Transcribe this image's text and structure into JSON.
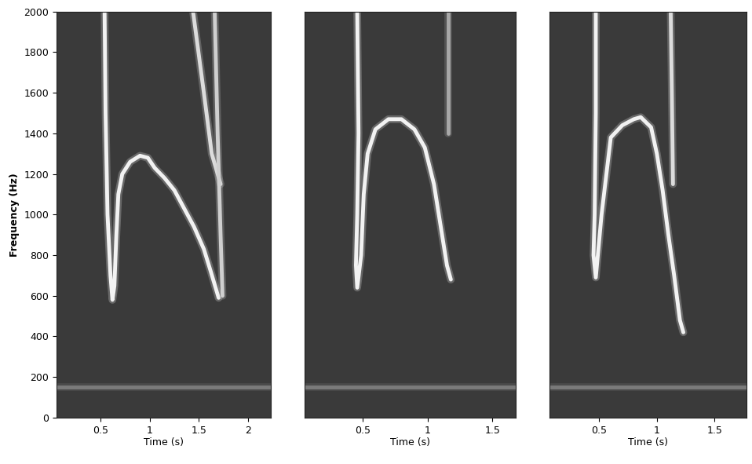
{
  "chart_data": [
    {
      "type": "line",
      "x_label": "Time (s)",
      "y_label": "Frequency (Hz)",
      "xlim": [
        0.05,
        2.23
      ],
      "xticks": [
        0.5,
        1,
        1.5,
        2
      ],
      "ylim": [
        0,
        2000
      ],
      "yticks": [
        0,
        200,
        400,
        600,
        800,
        1000,
        1200,
        1400,
        1600,
        1800,
        2000
      ],
      "grid": false,
      "series": [
        {
          "color": "#7a7a7a",
          "x": [
            0.05,
            2.23
          ],
          "values": [
            150,
            150
          ]
        },
        {
          "color": "#f2f2f2",
          "x": [
            0.54,
            0.55,
            0.57,
            0.6,
            0.62,
            0.64,
            0.66,
            0.68,
            0.72,
            0.8,
            0.9,
            0.98,
            1.05,
            1.15,
            1.25,
            1.35,
            1.45,
            1.55,
            1.62,
            1.7
          ],
          "values": [
            2000,
            1500,
            1000,
            700,
            580,
            650,
            900,
            1100,
            1200,
            1260,
            1290,
            1280,
            1230,
            1180,
            1120,
            1030,
            940,
            830,
            720,
            590
          ]
        },
        {
          "color": "#dcdcdc",
          "x": [
            1.44,
            1.55,
            1.63,
            1.72
          ],
          "values": [
            2000,
            1600,
            1300,
            1150
          ]
        },
        {
          "color": "#cfcfcf",
          "x": [
            1.66,
            1.69,
            1.72,
            1.74
          ],
          "values": [
            2000,
            1400,
            900,
            600
          ]
        }
      ]
    },
    {
      "type": "line",
      "x_label": "Time (s)",
      "xlim": [
        0.055,
        1.68
      ],
      "xticks": [
        0.5,
        1,
        1.5
      ],
      "ylim": [
        0,
        2000
      ],
      "tick_labels": "x",
      "grid": false,
      "series": [
        {
          "color": "#7a7a7a",
          "x": [
            0.055,
            1.68
          ],
          "values": [
            150,
            150
          ]
        },
        {
          "color": "#f2f2f2",
          "x": [
            0.46,
            0.47,
            0.46,
            0.45,
            0.46,
            0.49,
            0.51,
            0.54,
            0.6,
            0.7,
            0.8,
            0.9,
            0.98,
            1.05,
            1.1,
            1.15,
            1.18
          ],
          "values": [
            2000,
            1400,
            1000,
            750,
            640,
            800,
            1100,
            1300,
            1420,
            1470,
            1470,
            1420,
            1330,
            1150,
            950,
            750,
            680
          ]
        },
        {
          "color": "#a8a8a8",
          "x": [
            1.16,
            1.16
          ],
          "values": [
            2000,
            1400
          ]
        }
      ]
    },
    {
      "type": "line",
      "x_label": "Time (s)",
      "xlim": [
        0.07,
        1.78
      ],
      "xticks": [
        0.5,
        1,
        1.5
      ],
      "ylim": [
        0,
        2000
      ],
      "tick_labels": "x",
      "grid": false,
      "series": [
        {
          "color": "#7a7a7a",
          "x": [
            0.07,
            1.78
          ],
          "values": [
            150,
            150
          ]
        },
        {
          "color": "#f2f2f2",
          "x": [
            0.47,
            0.47,
            0.46,
            0.45,
            0.47,
            0.52,
            0.6,
            0.7,
            0.8,
            0.86,
            0.95,
            1.0,
            1.05,
            1.1,
            1.15,
            1.2,
            1.23
          ],
          "values": [
            2000,
            1500,
            1000,
            800,
            690,
            1000,
            1380,
            1440,
            1470,
            1480,
            1430,
            1300,
            1120,
            900,
            700,
            480,
            420
          ]
        },
        {
          "color": "#dcdcdc",
          "x": [
            1.12,
            1.13,
            1.14
          ],
          "values": [
            2000,
            1600,
            1150
          ]
        }
      ]
    }
  ]
}
